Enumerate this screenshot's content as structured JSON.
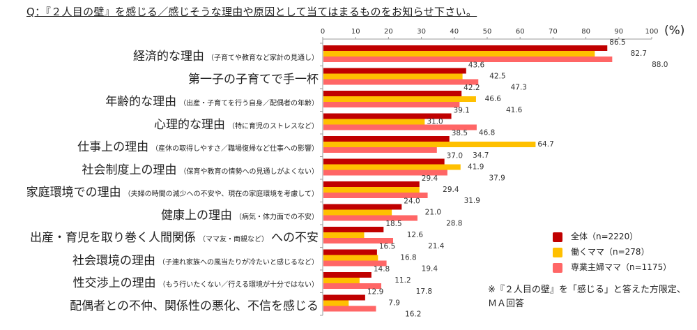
{
  "title": "Q：『２人目の壁』を感じる／感じそうな理由や原因として当てはまるものをお知らせ下さい。",
  "note": [
    "※『２人目の壁』を「感じる」と答えた方限定、",
    "ＭＡ回答"
  ],
  "chart_data": {
    "type": "bar",
    "orientation": "horizontal",
    "unit_label": "(%)",
    "xlim": [
      0,
      100
    ],
    "ticks": [
      0,
      10,
      20,
      30,
      40,
      50,
      60,
      70,
      80,
      90,
      100
    ],
    "axis_position": "top",
    "grid": false,
    "legend_position": "bottom-right",
    "categories": [
      {
        "main": "経済的な理由",
        "sub": "（子育てや教育など家計の見通し）",
        "suffix": ""
      },
      {
        "main": "第一子の子育てで手一杯",
        "sub": "",
        "suffix": ""
      },
      {
        "main": "年齢的な理由",
        "sub": "（出産・子育てを行う自身／配偶者の年齢）",
        "suffix": ""
      },
      {
        "main": "心理的な理由",
        "sub": "（特に育児のストレスなど）",
        "suffix": ""
      },
      {
        "main": "仕事上の理由",
        "sub": "（産休の取得しやすさ／職場復帰など仕事への影響）",
        "suffix": ""
      },
      {
        "main": "社会制度上の理由",
        "sub": "（保育や教育の情勢への見通しがよくない）",
        "suffix": ""
      },
      {
        "main": "家庭環境での理由",
        "sub": "（夫婦の時間の減少への不安や、現在の家庭環境を考慮して）",
        "suffix": ""
      },
      {
        "main": "健康上の理由",
        "sub": "（病気・体力面での不安）",
        "suffix": ""
      },
      {
        "main": "出産・育児を取り巻く人間関係",
        "sub": "（ママ友・両親など）",
        "suffix": "への不安"
      },
      {
        "main": "社会環境の理由",
        "sub": "（子連れ家族への風当たりが冷たいと感じるなど）",
        "suffix": ""
      },
      {
        "main": "性交渉上の理由",
        "sub": "（もう行いたくない／行える環境が十分ではない）",
        "suffix": ""
      },
      {
        "main": "配偶者との不仲、関係性の悪化、不信を感じる",
        "sub": "",
        "suffix": ""
      }
    ],
    "series": [
      {
        "name": "全体（n=2220）",
        "color": "#C00000",
        "values": [
          86.5,
          43.6,
          42.2,
          39.1,
          38.5,
          37.0,
          29.4,
          24.0,
          18.5,
          16.5,
          14.8,
          12.9
        ]
      },
      {
        "name": "働くママ（n=278）",
        "color": "#FFC000",
        "values": [
          82.7,
          42.5,
          46.6,
          31.0,
          64.7,
          41.9,
          29.4,
          21.0,
          12.6,
          16.8,
          11.2,
          7.9
        ]
      },
      {
        "name": "専業主婦ママ（n=1175）",
        "color": "#FF6666",
        "values": [
          88.0,
          47.3,
          41.6,
          46.8,
          34.7,
          37.9,
          31.9,
          28.8,
          21.4,
          19.4,
          17.8,
          16.2
        ]
      }
    ]
  }
}
